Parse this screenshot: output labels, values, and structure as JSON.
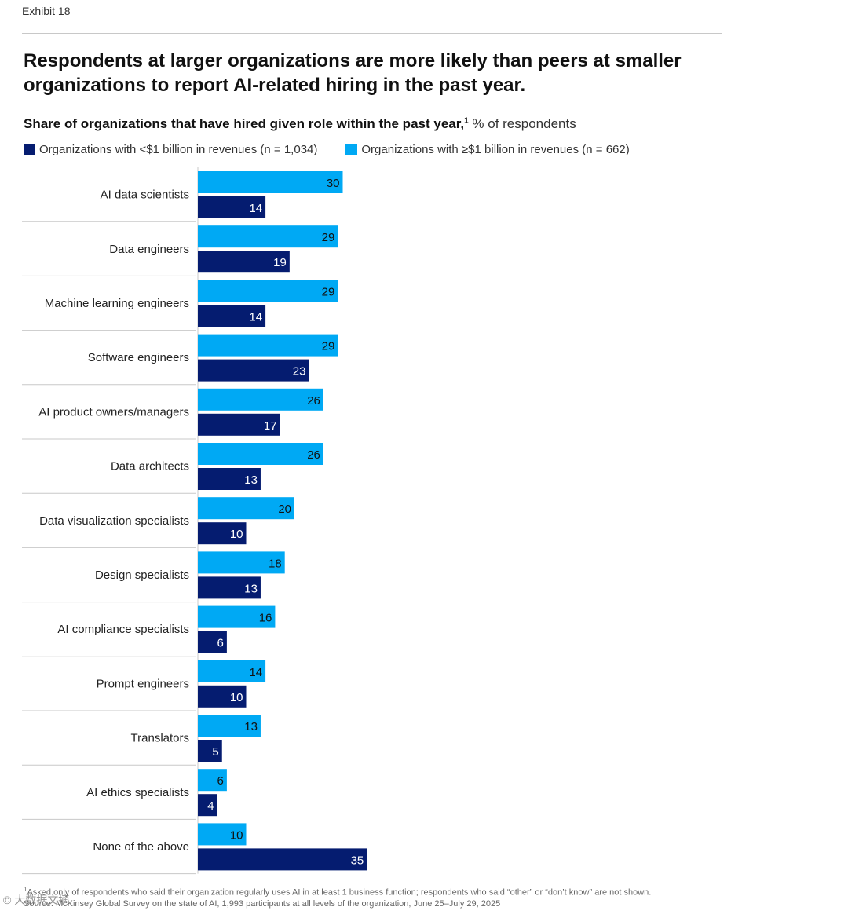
{
  "exhibit_label": "Exhibit 18",
  "title": "Respondents at larger organizations are more likely than peers at smaller organizations to report AI-related hiring in the past year.",
  "subtitle": {
    "bold": "Share of organizations that have hired given role within the past year,",
    "footnote_mark": "1",
    "unit": " % of respondents"
  },
  "colors": {
    "large": "#00a9f4",
    "small": "#051c70",
    "rule": "#c8c8c8"
  },
  "legend": {
    "small": "Organizations with <$1 billion in revenues (n = 1,034)",
    "large": "Organizations with ≥$1 billion in revenues (n = 662)"
  },
  "chart_data": {
    "type": "bar",
    "orientation": "horizontal",
    "categories": [
      "AI data scientists",
      "Data engineers",
      "Machine learning engineers",
      "Software engineers",
      "AI product owners/managers",
      "Data architects",
      "Data visualization specialists",
      "Design specialists",
      "AI compliance specialists",
      "Prompt engineers",
      "Translators",
      "AI ethics specialists",
      "None of the above"
    ],
    "series": [
      {
        "name": "Organizations with ≥$1 billion in revenues (n = 662)",
        "key": "large",
        "values": [
          30,
          29,
          29,
          29,
          26,
          26,
          20,
          18,
          16,
          14,
          13,
          6,
          10
        ]
      },
      {
        "name": "Organizations with <$1 billion in revenues (n = 1,034)",
        "key": "small",
        "values": [
          14,
          19,
          14,
          23,
          17,
          13,
          10,
          13,
          6,
          10,
          5,
          4,
          35
        ]
      }
    ],
    "title": "Share of organizations that have hired given role within the past year",
    "xlabel": "% of respondents",
    "xlim": [
      0,
      35
    ]
  },
  "footnote": {
    "mark": "1",
    "text": "Asked only of respondents who said their organization regularly uses AI in at least 1 business function; respondents who said “other” or “don’t know” are not shown.",
    "source": "Source: McKinsey Global Survey on the state of AI, 1,993 participants at all levels of the organization, June 25–July 29, 2025"
  },
  "watermark": "© 大数据文摘"
}
